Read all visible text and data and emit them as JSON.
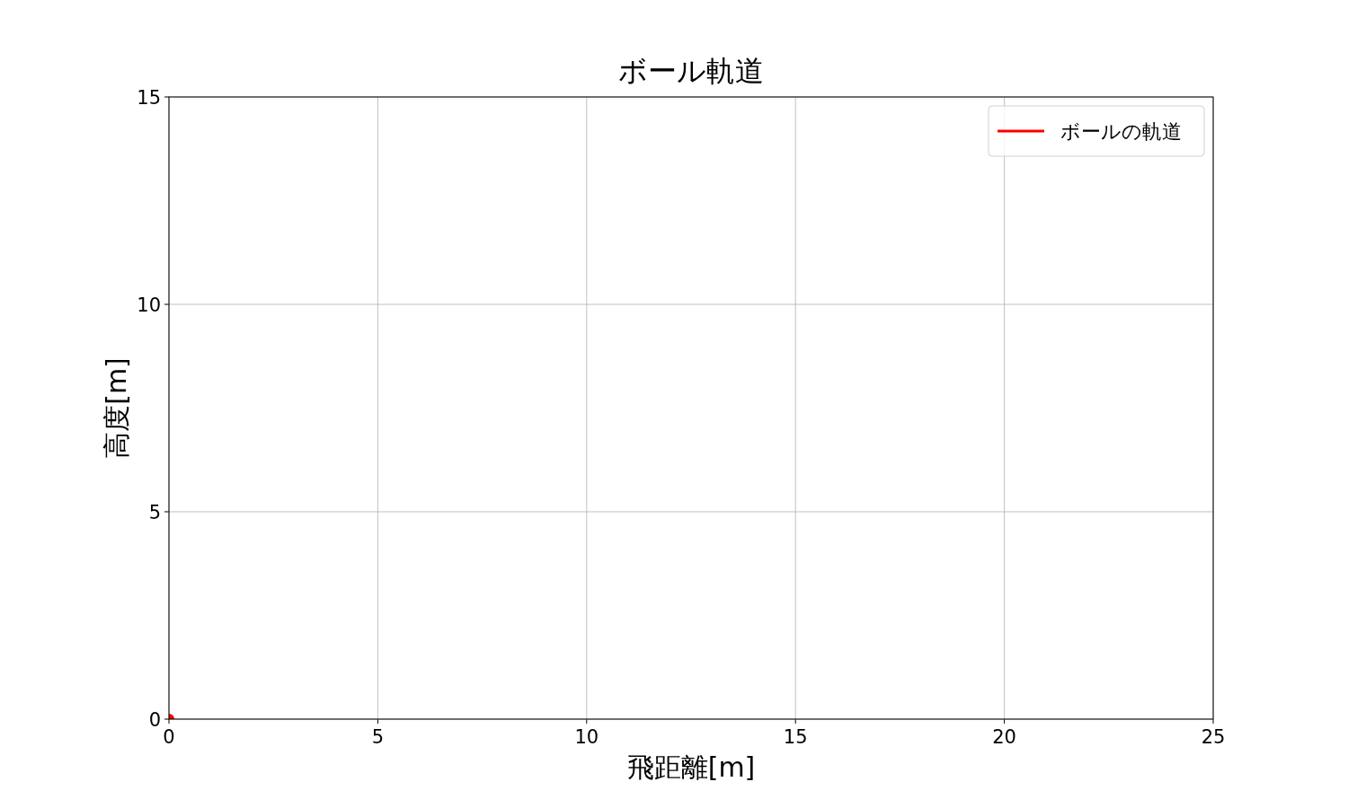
{
  "chart_data": {
    "type": "line",
    "title": "ボール軌道",
    "xlabel": "飛距離[m]",
    "ylabel": "高度[m]",
    "xlim": [
      0,
      25
    ],
    "ylim": [
      0,
      15
    ],
    "xticks": [
      0,
      5,
      10,
      15,
      20,
      25
    ],
    "yticks": [
      0,
      5,
      10,
      15
    ],
    "grid": true,
    "legend": "top right",
    "series": [
      {
        "name": "ボールの軌道",
        "color": "#ff0000",
        "x": [
          0
        ],
        "values": [
          0
        ],
        "marker": "circle"
      }
    ]
  }
}
